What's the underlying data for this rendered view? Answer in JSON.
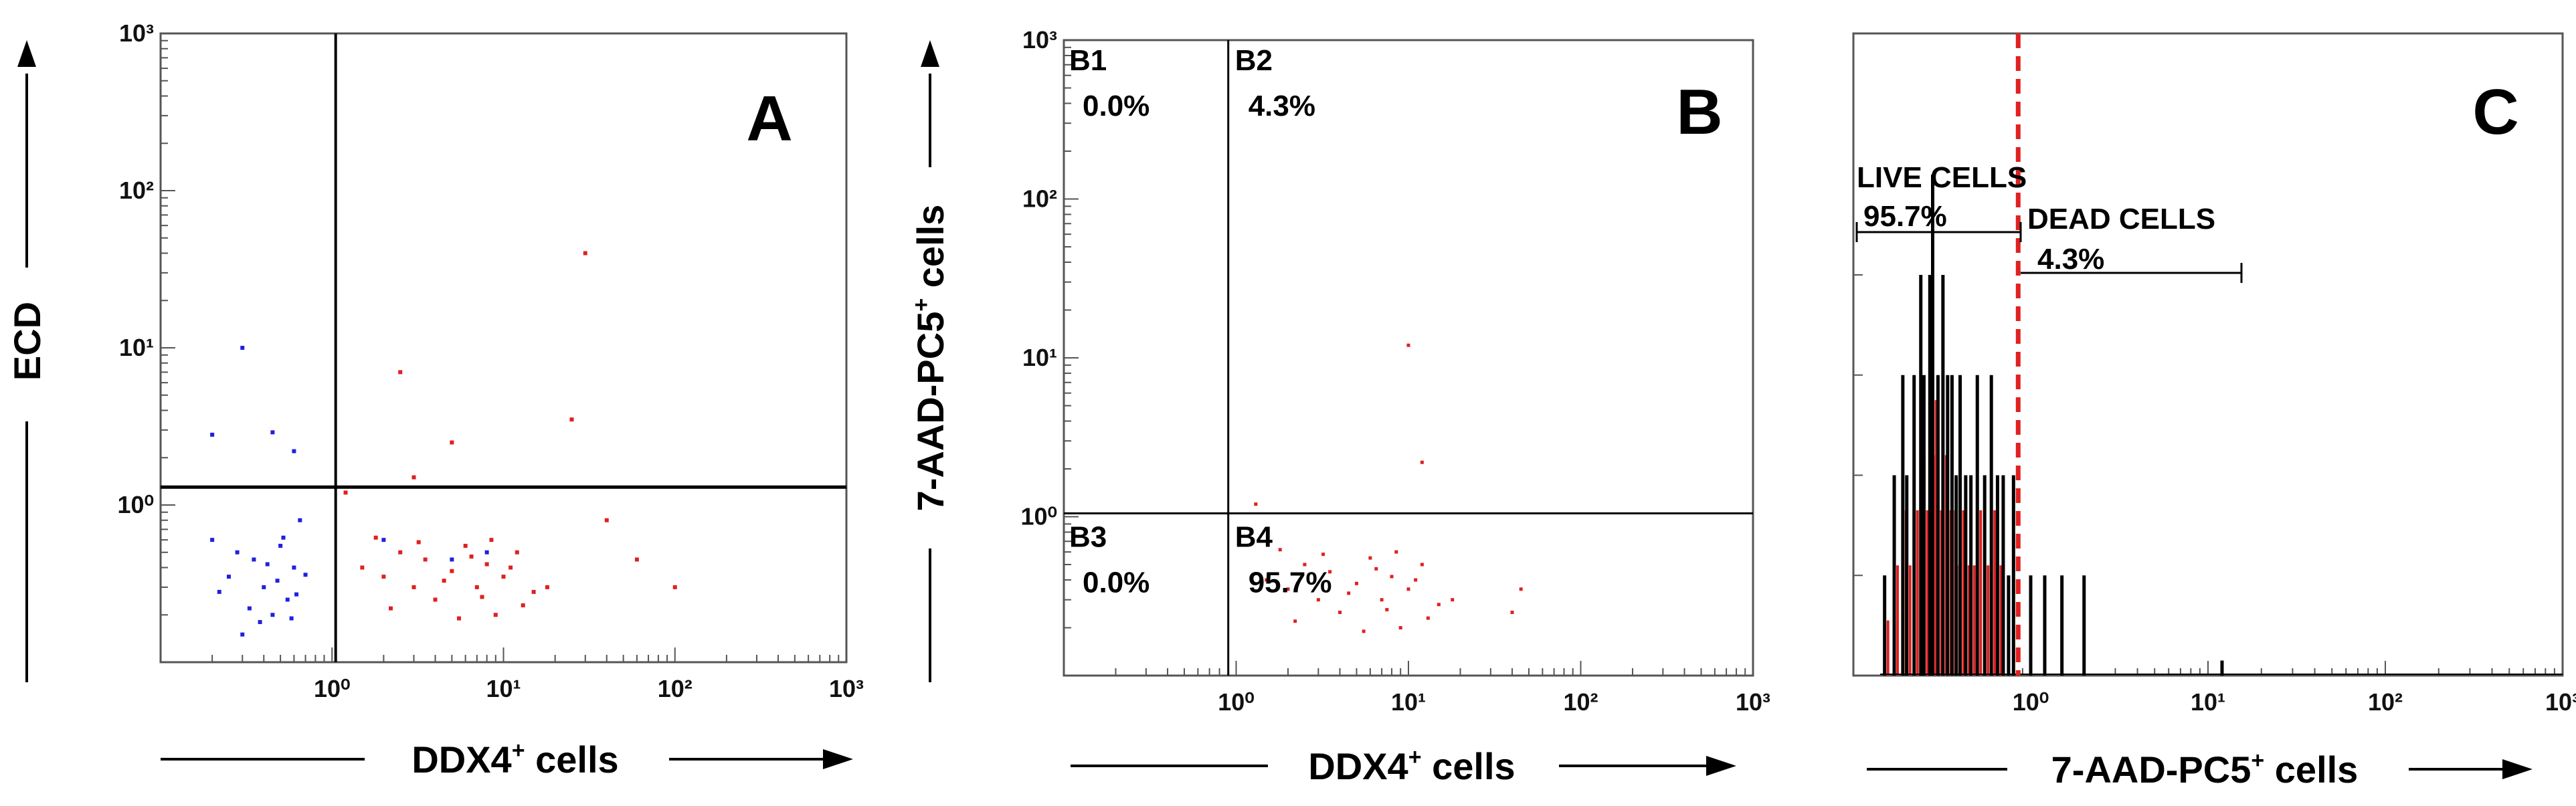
{
  "figure": {
    "panels": [
      "A",
      "B",
      "C"
    ]
  },
  "chart_data": [
    {
      "panel": "A",
      "type": "scatter",
      "xlabel": "DDX4",
      "xlabel_sup": "+",
      "xlabel_tail": " cells",
      "ylabel": "ECD",
      "xscale": "log",
      "yscale": "log",
      "xlim": [
        0.1,
        1000
      ],
      "ylim": [
        0.1,
        1000
      ],
      "x_ticks": [
        "10⁰",
        "10¹",
        "10²",
        "10³"
      ],
      "y_ticks": [
        "10⁰",
        "10¹",
        "10²",
        "10³"
      ],
      "gates": {
        "vertical_x": 1.05,
        "horizontal_y": 1.3
      },
      "series": [
        {
          "color": "#2020e0",
          "points": [
            [
              0.2,
              0.6
            ],
            [
              0.25,
              0.35
            ],
            [
              0.3,
              0.15
            ],
            [
              0.35,
              0.45
            ],
            [
              0.4,
              0.3
            ],
            [
              0.45,
              0.2
            ],
            [
              0.5,
              0.55
            ],
            [
              0.55,
              0.25
            ],
            [
              0.6,
              0.4
            ],
            [
              0.65,
              0.8
            ],
            [
              0.22,
              0.28
            ],
            [
              0.28,
              0.5
            ],
            [
              0.33,
              0.22
            ],
            [
              0.38,
              0.18
            ],
            [
              0.42,
              0.42
            ],
            [
              0.48,
              0.33
            ],
            [
              0.52,
              0.62
            ],
            [
              0.58,
              0.19
            ],
            [
              0.62,
              0.27
            ],
            [
              0.7,
              0.36
            ],
            [
              0.3,
              10
            ],
            [
              0.2,
              2.8
            ],
            [
              0.45,
              2.9
            ],
            [
              0.6,
              2.2
            ],
            [
              2,
              0.6
            ],
            [
              5,
              0.45
            ],
            [
              8,
              0.5
            ]
          ]
        },
        {
          "color": "#e02020",
          "points": [
            [
              1.5,
              0.4
            ],
            [
              2,
              0.35
            ],
            [
              2.5,
              0.5
            ],
            [
              3,
              0.3
            ],
            [
              3.5,
              0.45
            ],
            [
              4,
              0.25
            ],
            [
              5,
              0.38
            ],
            [
              6,
              0.55
            ],
            [
              7,
              0.3
            ],
            [
              8,
              0.42
            ],
            [
              9,
              0.2
            ],
            [
              10,
              0.35
            ],
            [
              12,
              0.5
            ],
            [
              15,
              0.28
            ],
            [
              1.8,
              0.62
            ],
            [
              2.2,
              0.22
            ],
            [
              3.2,
              0.58
            ],
            [
              4.5,
              0.33
            ],
            [
              5.5,
              0.19
            ],
            [
              6.5,
              0.47
            ],
            [
              7.5,
              0.26
            ],
            [
              8.5,
              0.6
            ],
            [
              11,
              0.4
            ],
            [
              13,
              0.23
            ],
            [
              18,
              0.3
            ],
            [
              40,
              0.8
            ],
            [
              60,
              0.45
            ],
            [
              100,
              0.3
            ],
            [
              5,
              2.5
            ],
            [
              3,
              1.5
            ],
            [
              25,
              3.5
            ],
            [
              30,
              40
            ],
            [
              2.5,
              7
            ],
            [
              1.2,
              1.2
            ]
          ]
        }
      ]
    },
    {
      "panel": "B",
      "type": "scatter",
      "xlabel": "DDX4",
      "xlabel_sup": "+",
      "xlabel_tail": " cells",
      "ylabel": "7-AAD-PC5",
      "ylabel_sup": "+",
      "ylabel_tail": " cells",
      "xscale": "log",
      "yscale": "log",
      "xlim": [
        0.1,
        1000
      ],
      "ylim": [
        0.1,
        1000
      ],
      "x_ticks": [
        "10⁰",
        "10¹",
        "10²",
        "10³"
      ],
      "y_ticks": [
        "10⁰",
        "10¹",
        "10²",
        "10³"
      ],
      "gates": {
        "vertical_x": 0.9,
        "horizontal_y": 1.05
      },
      "quadrants": [
        {
          "name": "B1",
          "value": "0.0%"
        },
        {
          "name": "B2",
          "value": "4.3%"
        },
        {
          "name": "B3",
          "value": "0.0%"
        },
        {
          "name": "B4",
          "value": "95.7%"
        }
      ],
      "series": [
        {
          "color": "#e02020",
          "points": [
            [
              1.5,
              0.4
            ],
            [
              2,
              0.35
            ],
            [
              2.5,
              0.5
            ],
            [
              3,
              0.3
            ],
            [
              3.5,
              0.45
            ],
            [
              4,
              0.25
            ],
            [
              5,
              0.38
            ],
            [
              6,
              0.55
            ],
            [
              7,
              0.3
            ],
            [
              8,
              0.42
            ],
            [
              9,
              0.2
            ],
            [
              10,
              0.35
            ],
            [
              12,
              0.5
            ],
            [
              15,
              0.28
            ],
            [
              1.8,
              0.62
            ],
            [
              2.2,
              0.22
            ],
            [
              3.2,
              0.58
            ],
            [
              4.5,
              0.33
            ],
            [
              5.5,
              0.19
            ],
            [
              6.5,
              0.47
            ],
            [
              7.5,
              0.26
            ],
            [
              8.5,
              0.6
            ],
            [
              11,
              0.4
            ],
            [
              13,
              0.23
            ],
            [
              18,
              0.3
            ],
            [
              40,
              0.25
            ],
            [
              45,
              0.35
            ],
            [
              1.3,
              1.2
            ],
            [
              12,
              2.2
            ],
            [
              10,
              12
            ]
          ]
        }
      ]
    },
    {
      "panel": "C",
      "type": "histogram",
      "xlabel": "7-AAD-PC5",
      "xlabel_sup": "+",
      "xlabel_tail": " cells",
      "xscale": "log",
      "xlim": [
        0.1,
        1000
      ],
      "x_ticks": [
        "10⁰",
        "10¹",
        "10²",
        "10³"
      ],
      "threshold_x": 0.85,
      "threshold_color": "#e02020",
      "gates": [
        {
          "name": "LIVE CELLS",
          "value": "95.7%"
        },
        {
          "name": "DEAD CELLS",
          "value": "4.3%"
        }
      ],
      "bins": [
        [
          0.15,
          1
        ],
        [
          0.17,
          2
        ],
        [
          0.19,
          3
        ],
        [
          0.2,
          2
        ],
        [
          0.22,
          3
        ],
        [
          0.24,
          4
        ],
        [
          0.25,
          3
        ],
        [
          0.27,
          4
        ],
        [
          0.28,
          5
        ],
        [
          0.3,
          3
        ],
        [
          0.32,
          4
        ],
        [
          0.34,
          3
        ],
        [
          0.36,
          3
        ],
        [
          0.38,
          2
        ],
        [
          0.4,
          3
        ],
        [
          0.43,
          2
        ],
        [
          0.46,
          2
        ],
        [
          0.5,
          3
        ],
        [
          0.55,
          2
        ],
        [
          0.6,
          3
        ],
        [
          0.65,
          2
        ],
        [
          0.7,
          2
        ],
        [
          0.75,
          1
        ],
        [
          0.8,
          2
        ],
        [
          1.0,
          1
        ],
        [
          1.2,
          1
        ],
        [
          1.5,
          1
        ],
        [
          2.0,
          1
        ],
        [
          12,
          0.15
        ]
      ]
    }
  ]
}
